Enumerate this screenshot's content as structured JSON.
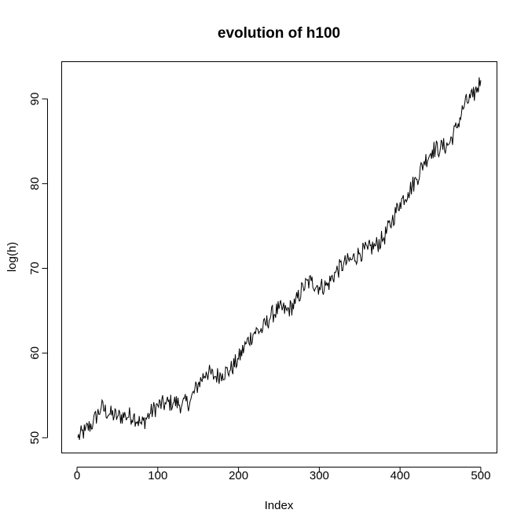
{
  "chart_data": {
    "type": "line",
    "title": "evolution of h100",
    "xlabel": "Index",
    "ylabel": "log(h)",
    "xlim": [
      -19,
      520
    ],
    "ylim": [
      48.2,
      94.4
    ],
    "x_ticks": [
      0,
      100,
      200,
      300,
      400,
      500
    ],
    "y_ticks": [
      50,
      60,
      70,
      80,
      90
    ],
    "grid": false,
    "series": [
      {
        "x": [
          1,
          10,
          20,
          30,
          40,
          50,
          60,
          70,
          80,
          90,
          100,
          110,
          120,
          130,
          140,
          150,
          160,
          170,
          180,
          190,
          200,
          210,
          220,
          230,
          240,
          250,
          260,
          270,
          280,
          290,
          300,
          310,
          320,
          330,
          340,
          350,
          360,
          370,
          380,
          390,
          400,
          410,
          420,
          430,
          440,
          450,
          460,
          470,
          480,
          490,
          500
        ],
        "values": [
          50.0,
          50.8,
          51.8,
          53.6,
          52.8,
          52.5,
          52.6,
          52.6,
          51.6,
          52.8,
          53.8,
          54.0,
          54.2,
          53.9,
          54.3,
          56.3,
          57.8,
          57.2,
          57.6,
          58.0,
          59.3,
          61.2,
          62.5,
          62.8,
          64.4,
          65.2,
          65.0,
          65.8,
          67.8,
          68.5,
          67.8,
          68.0,
          69.5,
          70.5,
          71.0,
          71.8,
          72.2,
          72.7,
          73.6,
          75.6,
          77.8,
          79.0,
          80.5,
          82.6,
          84.0,
          84.2,
          84.6,
          86.6,
          89.4,
          90.2,
          92.2
        ]
      }
    ]
  }
}
